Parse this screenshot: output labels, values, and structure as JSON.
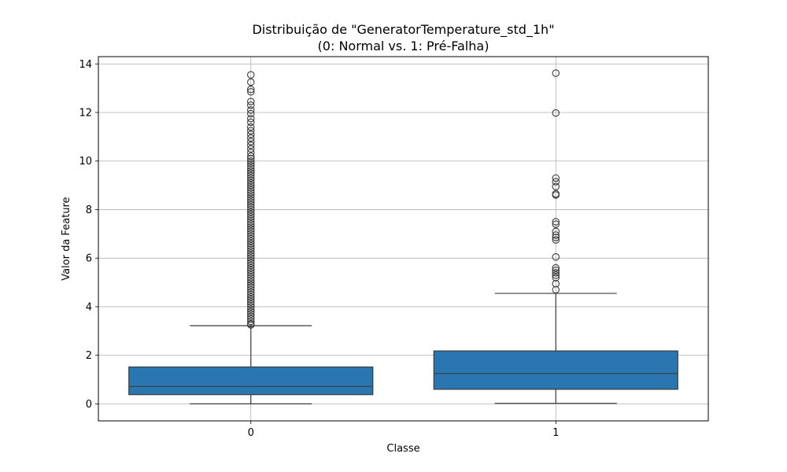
{
  "chart_data": {
    "type": "box",
    "title": "Distribuição de \"GeneratorTemperature_std_1h\"",
    "subtitle": "(0: Normal vs. 1: Pré-Falha)",
    "xlabel": "Classe",
    "ylabel": "Valor da Feature",
    "ylim": [
      -0.7,
      14.3
    ],
    "yticks": [
      0,
      2,
      4,
      6,
      8,
      10,
      12,
      14
    ],
    "grid": true,
    "box_color": "#2a76b0",
    "line_color": "#3c3c3c",
    "categories": [
      "0",
      "1"
    ],
    "boxes": [
      {
        "category": "0",
        "whisker_low": 0.0,
        "q1": 0.38,
        "median": 0.72,
        "q3": 1.52,
        "whisker_high": 3.22,
        "outliers": [
          3.25,
          3.3,
          3.4,
          3.5,
          3.6,
          3.7,
          3.8,
          3.9,
          4.0,
          4.1,
          4.2,
          4.3,
          4.4,
          4.5,
          4.6,
          4.7,
          4.8,
          4.9,
          5.0,
          5.1,
          5.2,
          5.3,
          5.4,
          5.5,
          5.6,
          5.7,
          5.8,
          5.9,
          6.0,
          6.1,
          6.2,
          6.3,
          6.4,
          6.5,
          6.6,
          6.7,
          6.8,
          6.9,
          7.0,
          7.1,
          7.2,
          7.3,
          7.4,
          7.5,
          7.6,
          7.7,
          7.8,
          7.9,
          8.0,
          8.1,
          8.2,
          8.3,
          8.4,
          8.5,
          8.6,
          8.7,
          8.8,
          8.9,
          9.0,
          9.1,
          9.2,
          9.3,
          9.4,
          9.5,
          9.6,
          9.7,
          9.8,
          9.9,
          10.0,
          10.1,
          10.2,
          10.35,
          10.5,
          10.65,
          10.8,
          10.95,
          11.1,
          11.25,
          11.4,
          11.6,
          11.75,
          11.95,
          12.1,
          12.3,
          12.45,
          12.85,
          12.95,
          13.25,
          13.55
        ]
      },
      {
        "category": "1",
        "whisker_low": 0.02,
        "q1": 0.6,
        "median": 1.25,
        "q3": 2.18,
        "whisker_high": 4.55,
        "outliers": [
          4.7,
          4.95,
          5.2,
          5.3,
          5.4,
          5.5,
          5.6,
          6.05,
          6.75,
          6.85,
          6.95,
          7.1,
          7.4,
          7.5,
          8.6,
          8.65,
          8.95,
          9.15,
          9.3,
          11.98,
          13.62
        ]
      }
    ]
  }
}
